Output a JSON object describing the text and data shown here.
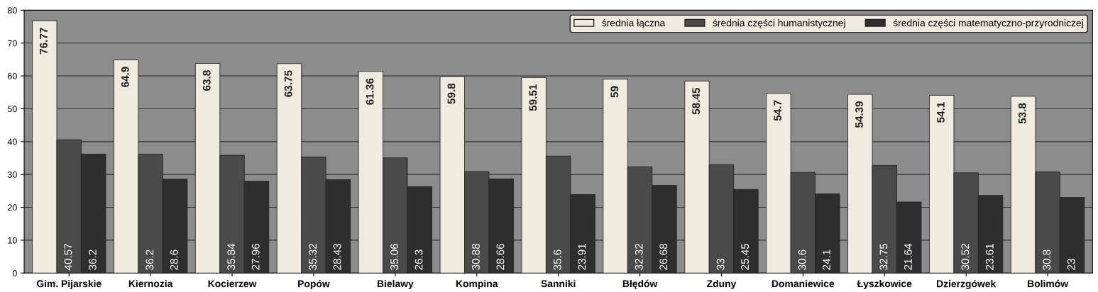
{
  "chart_data": {
    "type": "bar",
    "categories": [
      "Gim. Pijarskie",
      "Kiernozia",
      "Kocierzew",
      "Popów",
      "Bielawy",
      "Kompina",
      "Sanniki",
      "Błędów",
      "Zduny",
      "Domaniewice",
      "Łyszkowice",
      "Dzierzgówek",
      "Bolimów"
    ],
    "series": [
      {
        "name": "średnia łączna",
        "color": "#efebdf",
        "values": [
          76.77,
          64.9,
          63.8,
          63.75,
          61.36,
          59.8,
          59.51,
          59,
          58.45,
          54.7,
          54.39,
          54.1,
          53.8
        ]
      },
      {
        "name": "średnia części humanistycznej",
        "color": "#4a4a4a",
        "values": [
          40.57,
          36.2,
          35.84,
          35.32,
          35.06,
          30.88,
          35.6,
          32.32,
          33,
          30.6,
          32.75,
          30.52,
          30.8
        ]
      },
      {
        "name": "średnia części matematyczno-przyrodniczej",
        "color": "#2e2e2e",
        "values": [
          36.2,
          28.6,
          27.96,
          28.43,
          26.3,
          28.66,
          23.91,
          26.68,
          25.45,
          24.1,
          21.64,
          23.61,
          23
        ]
      }
    ],
    "ylim": [
      0,
      80
    ],
    "yticks": [
      0,
      10,
      20,
      30,
      40,
      50,
      60,
      70,
      80
    ],
    "grid": "y",
    "legend": "top right",
    "data_labels": true
  }
}
